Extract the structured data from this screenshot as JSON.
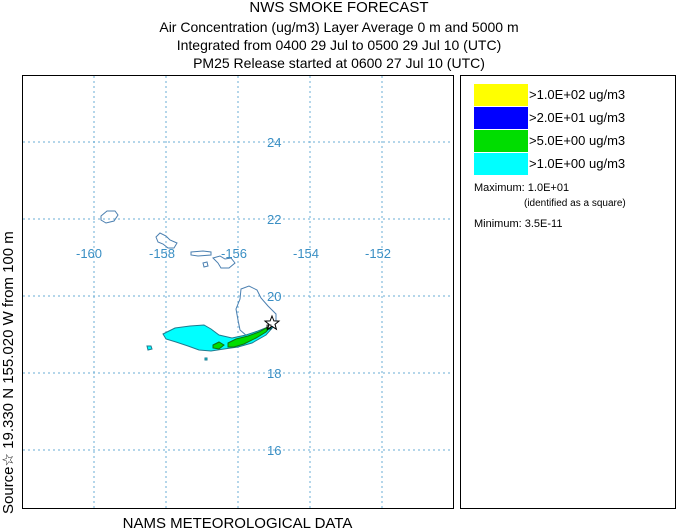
{
  "header": {
    "title": "NWS SMOKE FORECAST",
    "line1": "Air Concentration (ug/m3) Layer Average    0 m and  5000 m",
    "line2": "Integrated from 0400 29 Jul to 0500 29 Jul 10 (UTC)",
    "line3": "PM25 Release started at 0600 27 Jul 10 (UTC)"
  },
  "side_label": "Source☆ 19.330 N 155.020 W    from  100 m",
  "bottom_label": "NAMS METEOROLOGICAL DATA",
  "map": {
    "lon_labels": [
      "-160",
      "-158",
      "-156",
      "-154",
      "-152"
    ],
    "lat_labels": [
      "24",
      "22",
      "20",
      "18",
      "16"
    ],
    "label_color": "#3a8fc4",
    "grid_color": "#6aaed6",
    "source_marker": "star-icon"
  },
  "legend": {
    "items": [
      {
        "color": "#ffff00",
        "label": ">1.0E+02 ug/m3"
      },
      {
        "color": "#0000ff",
        "label": ">2.0E+01 ug/m3"
      },
      {
        "color": "#00dd00",
        "label": ">5.0E+00 ug/m3"
      },
      {
        "color": "#00ffff",
        "label": ">1.0E+00 ug/m3"
      }
    ],
    "maximum_label": "Maximum:",
    "maximum_value": "1.0E+01",
    "maximum_note": "(identified as a square)",
    "minimum_label": "Minimum:",
    "minimum_value": "3.5E-11"
  }
}
